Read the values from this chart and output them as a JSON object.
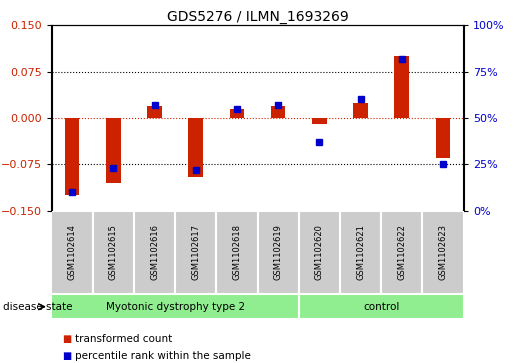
{
  "title": "GDS5276 / ILMN_1693269",
  "samples": [
    "GSM1102614",
    "GSM1102615",
    "GSM1102616",
    "GSM1102617",
    "GSM1102618",
    "GSM1102619",
    "GSM1102620",
    "GSM1102621",
    "GSM1102622",
    "GSM1102623"
  ],
  "red_values": [
    -0.125,
    -0.105,
    0.02,
    -0.095,
    0.015,
    0.02,
    -0.01,
    0.025,
    0.1,
    -0.065
  ],
  "blue_values": [
    10,
    23,
    57,
    22,
    55,
    57,
    37,
    60,
    82,
    25
  ],
  "group1_label": "Myotonic dystrophy type 2",
  "group1_count": 6,
  "group2_label": "control",
  "group2_count": 4,
  "disease_label": "disease state",
  "ylim_left": [
    -0.15,
    0.15
  ],
  "ylim_right": [
    0,
    100
  ],
  "yticks_left": [
    -0.15,
    -0.075,
    0,
    0.075,
    0.15
  ],
  "yticks_right": [
    0,
    25,
    50,
    75,
    100
  ],
  "left_color": "#cc2200",
  "right_color": "#0000cc",
  "group_bg": "#90ee90",
  "label_bg": "#cccccc",
  "legend_red_label": "transformed count",
  "legend_blue_label": "percentile rank within the sample",
  "bar_width": 0.35,
  "marker_size": 5
}
